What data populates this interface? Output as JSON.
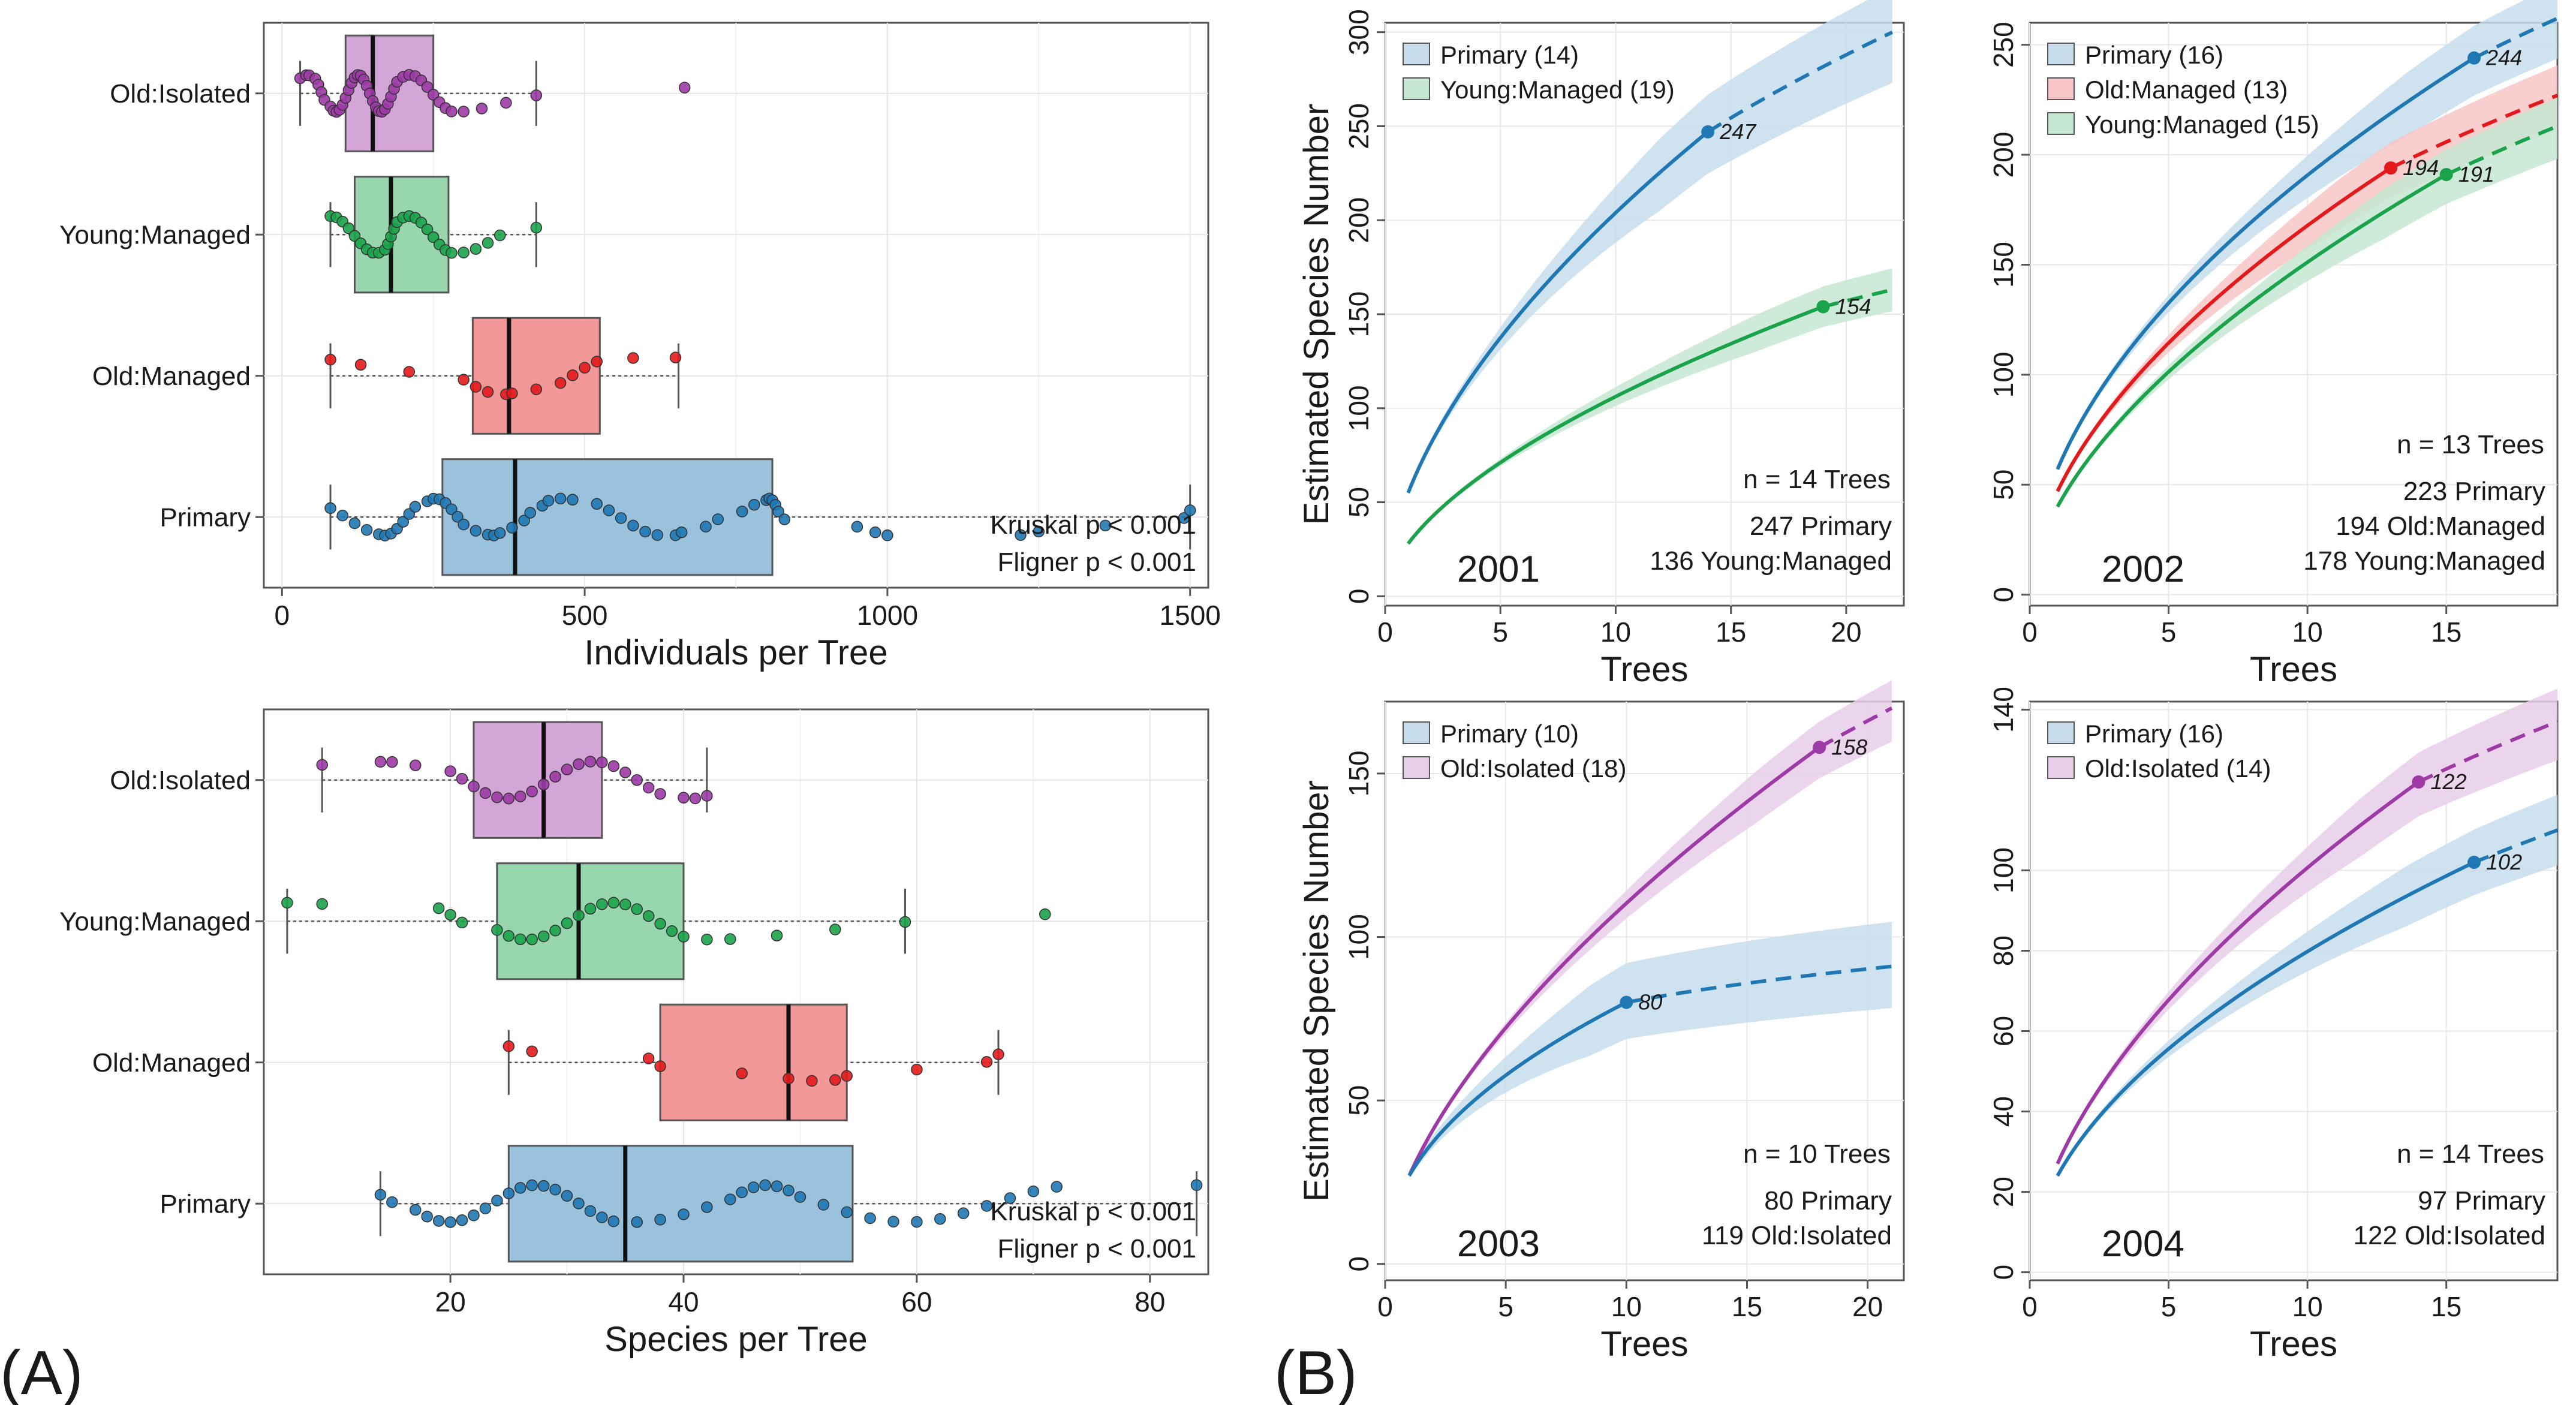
{
  "panel_labels": {
    "a": "(A)",
    "b": "(B)"
  },
  "colors": {
    "Primary": "#1f78b4",
    "Old:Managed": "#e31a1c",
    "Young:Managed": "#1aa34a",
    "Old:Isolated": "#9d3aa6"
  },
  "chart_data": [
    {
      "id": "A-top",
      "type": "boxplot",
      "xlabel": "Individuals per Tree",
      "xlim": [
        -30,
        1530
      ],
      "xticks": [
        0,
        500,
        1000,
        1500
      ],
      "categories": [
        "Old:Isolated",
        "Young:Managed",
        "Old:Managed",
        "Primary"
      ],
      "boxes": [
        {
          "group": "Old:Isolated",
          "whisker_low": 30,
          "q1": 105,
          "median": 150,
          "q3": 250,
          "whisker_high": 420,
          "points": [
            30,
            40,
            45,
            55,
            60,
            65,
            70,
            80,
            85,
            90,
            95,
            100,
            105,
            110,
            115,
            120,
            125,
            130,
            135,
            140,
            145,
            150,
            155,
            160,
            165,
            170,
            175,
            180,
            185,
            190,
            200,
            210,
            220,
            230,
            240,
            250,
            260,
            270,
            280,
            300,
            330,
            370,
            420,
            665
          ]
        },
        {
          "group": "Young:Managed",
          "whisker_low": 80,
          "q1": 120,
          "median": 180,
          "q3": 275,
          "whisker_high": 420,
          "points": [
            80,
            90,
            100,
            110,
            120,
            130,
            140,
            150,
            160,
            170,
            175,
            180,
            185,
            190,
            200,
            210,
            220,
            230,
            240,
            250,
            260,
            270,
            280,
            300,
            320,
            340,
            360,
            420
          ]
        },
        {
          "group": "Old:Managed",
          "whisker_low": 80,
          "q1": 315,
          "median": 375,
          "q3": 525,
          "whisker_high": 655,
          "points": [
            80,
            130,
            210,
            300,
            320,
            340,
            370,
            380,
            420,
            460,
            480,
            500,
            520,
            580,
            650
          ]
        },
        {
          "group": "Primary",
          "whisker_low": 80,
          "q1": 265,
          "median": 385,
          "q3": 810,
          "whisker_high": 1500,
          "points": [
            80,
            100,
            120,
            140,
            160,
            170,
            180,
            190,
            200,
            210,
            220,
            240,
            250,
            260,
            270,
            280,
            290,
            300,
            320,
            340,
            350,
            360,
            380,
            400,
            410,
            430,
            440,
            460,
            480,
            520,
            540,
            560,
            580,
            600,
            620,
            650,
            660,
            700,
            720,
            760,
            780,
            800,
            805,
            810,
            815,
            820,
            830,
            950,
            980,
            1000,
            1220,
            1250,
            1360,
            1490,
            1500
          ]
        }
      ],
      "annotations": [
        "Kruskal  p < 0.001",
        "Fligner  p < 0.001"
      ]
    },
    {
      "id": "A-bottom",
      "type": "boxplot",
      "xlabel": "Species per Tree",
      "xlim": [
        4,
        85
      ],
      "xticks": [
        20,
        40,
        60,
        80
      ],
      "categories": [
        "Old:Isolated",
        "Young:Managed",
        "Old:Managed",
        "Primary"
      ],
      "boxes": [
        {
          "group": "Old:Isolated",
          "whisker_low": 9,
          "q1": 22,
          "median": 28,
          "q3": 33,
          "whisker_high": 42,
          "points": [
            9,
            14,
            15,
            17,
            20,
            21,
            22,
            23,
            24,
            25,
            26,
            27,
            28,
            29,
            30,
            31,
            32,
            33,
            34,
            35,
            36,
            37,
            38,
            40,
            41,
            42
          ]
        },
        {
          "group": "Young:Managed",
          "whisker_low": 6,
          "q1": 24,
          "median": 31,
          "q3": 40,
          "whisker_high": 59,
          "points": [
            6,
            9,
            19,
            20,
            21,
            24,
            25,
            26,
            27,
            28,
            29,
            30,
            31,
            32,
            33,
            34,
            35,
            36,
            37,
            38,
            39,
            40,
            42,
            44,
            48,
            53,
            59,
            71
          ]
        },
        {
          "group": "Old:Managed",
          "whisker_low": 25,
          "q1": 38,
          "median": 49,
          "q3": 54,
          "whisker_high": 67,
          "points": [
            25,
            27,
            37,
            38,
            45,
            49,
            51,
            53,
            54,
            60,
            66,
            67
          ]
        },
        {
          "group": "Primary",
          "whisker_low": 14,
          "q1": 25,
          "median": 35,
          "q3": 54.5,
          "whisker_high": 84,
          "points": [
            14,
            15,
            17,
            18,
            19,
            20,
            21,
            22,
            23,
            24,
            25,
            26,
            27,
            28,
            29,
            30,
            31,
            32,
            33,
            34,
            36,
            38,
            40,
            42,
            44,
            45,
            46,
            47,
            48,
            49,
            50,
            52,
            54,
            56,
            58,
            60,
            62,
            64,
            66,
            68,
            70,
            72,
            84
          ]
        }
      ],
      "annotations": [
        "Kruskal  p < 0.001",
        "Fligner  p < 0.001"
      ]
    },
    {
      "id": "B-2001",
      "type": "line",
      "year": "2001",
      "xlabel": "Trees",
      "ylabel": "Estimated Species Number",
      "xlim": [
        0,
        22.5
      ],
      "ylim": [
        -5,
        305
      ],
      "xticks": [
        0,
        5,
        10,
        15,
        20
      ],
      "yticks": [
        0,
        50,
        100,
        150,
        200,
        250,
        300
      ],
      "series": [
        {
          "name": "Primary",
          "legend": "Primary (14)",
          "n": 14,
          "end": 247,
          "ext": 22,
          "low": 55,
          "high": 300,
          "ci_lo": 0.91,
          "ci_hi": 1.08
        },
        {
          "name": "Young:Managed",
          "legend": "Young:Managed (19)",
          "n": 19,
          "end": 154,
          "ext": 22,
          "low": 28,
          "high": 163,
          "ci_lo": 0.93,
          "ci_hi": 1.07
        }
      ],
      "annotations": [
        "n = 14 Trees",
        "247 Primary",
        "136 Young:Managed"
      ]
    },
    {
      "id": "B-2002",
      "type": "line",
      "year": "2002",
      "xlabel": "Trees",
      "ylabel": "",
      "xlim": [
        0,
        19
      ],
      "ylim": [
        -5,
        260
      ],
      "xticks": [
        0,
        5,
        10,
        15
      ],
      "yticks": [
        0,
        50,
        100,
        150,
        200,
        250
      ],
      "series": [
        {
          "name": "Primary",
          "legend": "Primary (16)",
          "n": 16,
          "end": 244,
          "ext": 19,
          "low": 57,
          "high": 262,
          "ci_lo": 0.93,
          "ci_hi": 1.06
        },
        {
          "name": "Old:Managed",
          "legend": "Old:Managed (13)",
          "n": 13,
          "end": 194,
          "ext": 19,
          "low": 47,
          "high": 227,
          "ci_lo": 0.93,
          "ci_hi": 1.06
        },
        {
          "name": "Young:Managed",
          "legend": "Young:Managed (15)",
          "n": 15,
          "end": 191,
          "ext": 19,
          "low": 40,
          "high": 213,
          "ci_lo": 0.93,
          "ci_hi": 1.06
        }
      ],
      "point_label_override": {
        "Old:Managed": 194,
        "Young:Managed": 191
      },
      "annotations": [
        "n = 13 Trees",
        "223 Primary",
        "194 Old:Managed",
        "178 Young:Managed"
      ]
    },
    {
      "id": "B-2003",
      "type": "line",
      "year": "2003",
      "xlabel": "Trees",
      "ylabel": "Estimated Species Number",
      "xlim": [
        0,
        21.5
      ],
      "ylim": [
        -5,
        172
      ],
      "xticks": [
        0,
        5,
        10,
        15,
        20
      ],
      "yticks": [
        0,
        50,
        100,
        150
      ],
      "series": [
        {
          "name": "Old:Isolated",
          "legend": "Old:Isolated (18)",
          "n": 18,
          "end": 158,
          "ext": 21,
          "low": 27,
          "high": 170,
          "ci_lo": 0.94,
          "ci_hi": 1.05
        },
        {
          "name": "Primary",
          "legend": "Primary (10)",
          "n": 10,
          "end": 80,
          "ext": 21,
          "low": 27,
          "high": 91,
          "ci_lo": 0.86,
          "ci_hi": 1.15
        }
      ],
      "legend_order": [
        "Primary",
        "Old:Isolated"
      ],
      "annotations": [
        "n = 10 Trees",
        "80 Primary",
        "119 Old:Isolated"
      ]
    },
    {
      "id": "B-2004",
      "type": "line",
      "year": "2004",
      "xlabel": "Trees",
      "ylabel": "",
      "xlim": [
        0,
        19
      ],
      "ylim": [
        -2,
        142
      ],
      "xticks": [
        0,
        5,
        10,
        15
      ],
      "yticks": [
        0,
        20,
        40,
        60,
        80,
        100,
        140
      ],
      "series": [
        {
          "name": "Old:Isolated",
          "legend": "Old:Isolated (14)",
          "n": 14,
          "end": 122,
          "ext": 19,
          "low": 27,
          "high": 137,
          "ci_lo": 0.93,
          "ci_hi": 1.06
        },
        {
          "name": "Primary",
          "legend": "Primary (16)",
          "n": 16,
          "end": 102,
          "ext": 19,
          "low": 24,
          "high": 110,
          "ci_lo": 0.92,
          "ci_hi": 1.08
        }
      ],
      "legend_order": [
        "Primary",
        "Old:Isolated"
      ],
      "annotations": [
        "n = 14 Trees",
        "97 Primary",
        "122 Old:Isolated"
      ]
    }
  ]
}
